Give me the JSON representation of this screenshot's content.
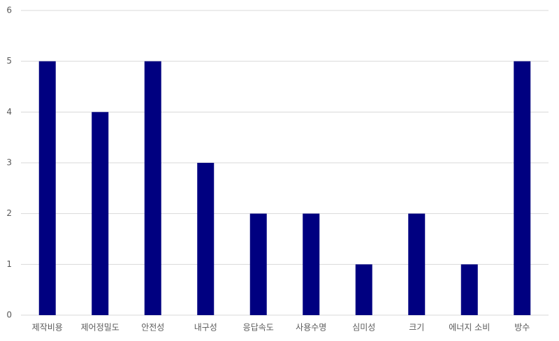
{
  "chart_data": {
    "type": "bar",
    "categories": [
      "제작비용",
      "제어정밀도",
      "안전성",
      "내구성",
      "응답속도",
      "사용수명",
      "심미성",
      "크기",
      "에너지 소비",
      "방수"
    ],
    "values": [
      5,
      4,
      5,
      3,
      2,
      2,
      1,
      2,
      1,
      5
    ],
    "color": "#000080",
    "ylim": [
      0,
      6
    ],
    "yticks": [
      0,
      1,
      2,
      3,
      4,
      5,
      6
    ],
    "grid": true
  }
}
